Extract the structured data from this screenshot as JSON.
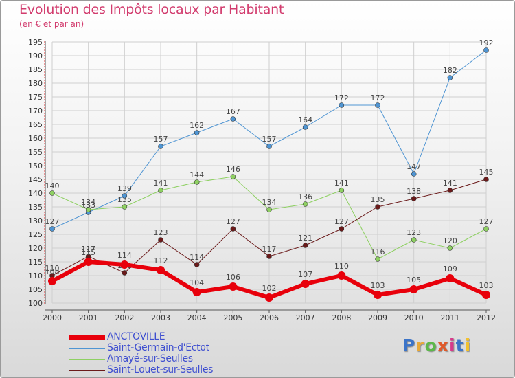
{
  "title": "Evolution des Impôts locaux par Habitant",
  "subtitle": "(en € et par an)",
  "logo": {
    "text": "Proxiti",
    "colors": [
      "#3c74c8",
      "#e8a93a",
      "#5cb84a",
      "#e05a2a",
      "#d63a8a",
      "#3c74c8",
      "#f2c12e"
    ]
  },
  "colors": {
    "title": "#d23c6e",
    "grid": "#cfcfcf",
    "axis_text": "#333333",
    "legend_text": "#3f4fd0"
  },
  "chart_data": {
    "type": "line",
    "title": "Evolution des Impôts locaux par Habitant",
    "subtitle": "(en € et par an)",
    "xlabel": "",
    "ylabel": "",
    "x": [
      2000,
      2001,
      2002,
      2003,
      2004,
      2005,
      2006,
      2007,
      2008,
      2009,
      2010,
      2011,
      2012
    ],
    "ylim": [
      100,
      195
    ],
    "yticks": [
      100,
      105,
      110,
      115,
      120,
      125,
      130,
      135,
      140,
      145,
      150,
      155,
      160,
      165,
      170,
      175,
      180,
      185,
      190,
      195
    ],
    "grid": true,
    "legend_position": "bottom-left",
    "series": [
      {
        "name": "ANCTOVILLE",
        "color": "#e8000b",
        "width": 6,
        "marker": 6,
        "values": [
          108,
          115,
          114,
          112,
          104,
          106,
          102,
          107,
          110,
          103,
          105,
          109,
          103
        ],
        "labels": [
          "108",
          "115",
          "114",
          "112",
          "104",
          "106",
          "102",
          "107",
          "110",
          "103",
          "105",
          "109",
          "103"
        ]
      },
      {
        "name": "Saint-Germain-d'Ectot",
        "color": "#4f95d3",
        "width": 1,
        "marker": 3.5,
        "values": [
          127,
          133,
          139,
          157,
          162,
          167,
          157,
          164,
          172,
          172,
          147,
          182,
          192
        ],
        "labels": [
          "127",
          "133",
          "139",
          "157",
          "162",
          "167",
          "157",
          "164",
          "172",
          "172",
          "147",
          "182",
          "192"
        ]
      },
      {
        "name": "Amayé-sur-Seulles",
        "color": "#8ed062",
        "width": 1,
        "marker": 3.5,
        "values": [
          140,
          134,
          135,
          141,
          144,
          146,
          134,
          136,
          141,
          116,
          123,
          120,
          127
        ],
        "labels": [
          "140",
          "134",
          "135",
          "141",
          "144",
          "146",
          "134",
          "136",
          "141",
          "116",
          "123",
          "120",
          "127"
        ]
      },
      {
        "name": "Saint-Louet-sur-Seulles",
        "color": "#6b1a1a",
        "width": 1,
        "marker": 3.5,
        "values": [
          110,
          117,
          111,
          123,
          114,
          127,
          117,
          121,
          127,
          135,
          138,
          141,
          145
        ],
        "labels": [
          "110",
          "117",
          "111",
          "123",
          "114",
          "127",
          "117",
          "121",
          "127",
          "135",
          "138",
          "141",
          "145"
        ]
      }
    ]
  }
}
